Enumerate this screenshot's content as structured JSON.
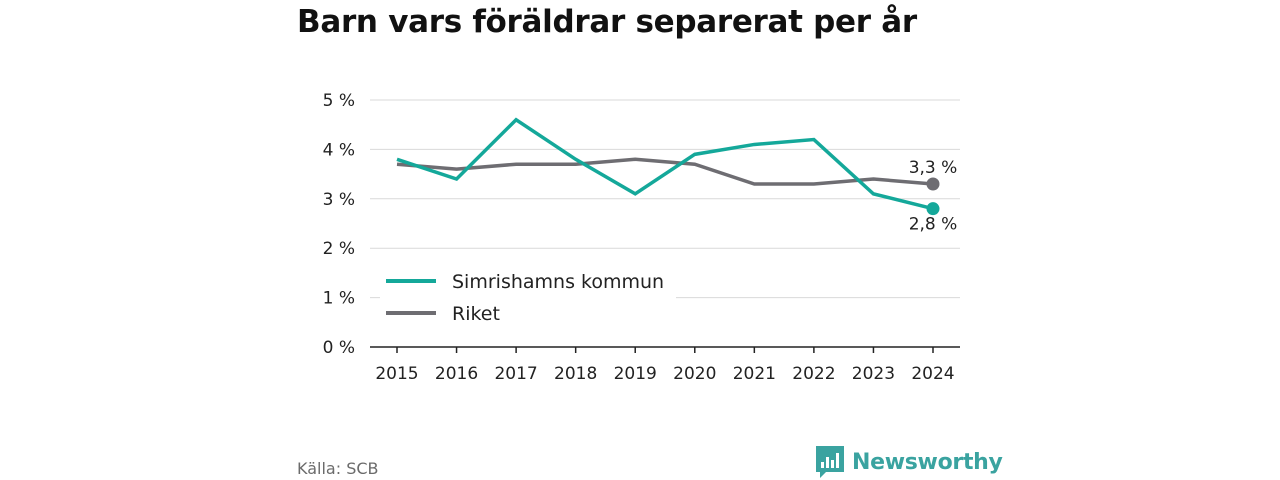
{
  "title": "Barn vars föräldrar separerat per år",
  "source": "Källa: SCB",
  "brand": {
    "name": "Newsworthy",
    "logo_icon": "bar-chart-speech-bubble-icon",
    "color": "#3aa3a0"
  },
  "chart_data": {
    "type": "line",
    "title": "Barn vars föräldrar separerat per år",
    "x": [
      "2015",
      "2016",
      "2017",
      "2018",
      "2019",
      "2020",
      "2021",
      "2022",
      "2023",
      "2024"
    ],
    "y_ticks": [
      0,
      1,
      2,
      3,
      4,
      5
    ],
    "y_tick_labels": [
      "0 %",
      "1 %",
      "2 %",
      "3 %",
      "4 %",
      "5 %"
    ],
    "ylim": [
      0,
      5
    ],
    "grid": true,
    "legend_placement": "bottom-left",
    "series": [
      {
        "name": "Simrishamns kommun",
        "color": "#14a89a",
        "values": [
          3.8,
          3.4,
          4.6,
          3.8,
          3.1,
          3.9,
          4.1,
          4.2,
          3.1,
          2.8
        ],
        "end_label": "2,8 %"
      },
      {
        "name": "Riket",
        "color": "#6e6d72",
        "values": [
          3.7,
          3.6,
          3.7,
          3.7,
          3.8,
          3.7,
          3.3,
          3.3,
          3.4,
          3.3
        ],
        "end_label": "3,3 %"
      }
    ]
  }
}
